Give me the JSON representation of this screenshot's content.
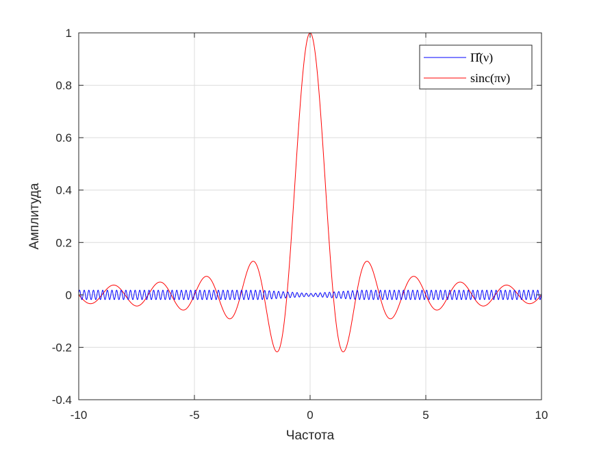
{
  "chart_data": {
    "type": "line",
    "title": "",
    "xlabel": "Частота",
    "ylabel": "Амплитуда",
    "xlim": [
      -10,
      10
    ],
    "ylim": [
      -0.4,
      1
    ],
    "xticks": [
      -10,
      -5,
      0,
      5,
      10
    ],
    "yticks": [
      -0.4,
      -0.2,
      0,
      0.2,
      0.4,
      0.6,
      0.8,
      1
    ],
    "xtick_labels": [
      "-10",
      "-5",
      "0",
      "5",
      "10"
    ],
    "ytick_labels": [
      "-0.4",
      "-0.2",
      "0",
      "0.2",
      "0.4",
      "0.6",
      "0.8",
      "1"
    ],
    "grid": true,
    "legend_position": "top-right",
    "series": [
      {
        "name": "Π̂(ν)",
        "color": "#0000ff",
        "function": "small oscillation around 0",
        "amplitude": 0.018,
        "frequency": 2.5,
        "x": [
          -10,
          -9.8,
          -9.6,
          -9.4,
          -9.2,
          -9,
          -8.8,
          -8.6,
          -8.4,
          -8.2,
          -8,
          -7.8,
          -7.6,
          -7.4,
          -7.2,
          -7,
          -6.8,
          -6.6,
          -6.4,
          -6.2,
          -6,
          -5.8,
          -5.6,
          -5.4,
          -5.2,
          -5,
          -4.8,
          -4.6,
          -4.4,
          -4.2,
          -4,
          -3.8,
          -3.6,
          -3.4,
          -3.2,
          -3,
          -2.8,
          -2.6,
          -2.4,
          -2.2,
          -2,
          -1.8,
          -1.6,
          -1.4,
          -1.2,
          -1,
          -0.8,
          -0.6,
          -0.4,
          -0.2,
          0,
          0.2,
          0.4,
          0.6,
          0.8,
          1,
          1.2,
          1.4,
          1.6,
          1.8,
          2,
          2.2,
          2.4,
          2.6,
          2.8,
          3,
          3.2,
          3.4,
          3.6,
          3.8,
          4,
          4.2,
          4.4,
          4.6,
          4.8,
          5,
          5.2,
          5.4,
          5.6,
          5.8,
          6,
          6.2,
          6.4,
          6.6,
          6.8,
          7,
          7.2,
          7.4,
          7.6,
          7.8,
          8,
          8.2,
          8.4,
          8.6,
          8.8,
          9,
          9.2,
          9.4,
          9.6,
          9.8,
          10
        ],
        "y_amplitude_envelope": "approx ±0.018 throughout, ±0.005 near 0"
      },
      {
        "name": "sinc(πν)",
        "color": "#ff0000",
        "function": "sin(pi*x)/(pi*x)",
        "peak": 1,
        "minima": [
          {
            "x": -1.43,
            "y": -0.217
          },
          {
            "x": 1.43,
            "y": -0.217
          },
          {
            "x": -3.47,
            "y": -0.091
          },
          {
            "x": 3.47,
            "y": -0.091
          },
          {
            "x": -5.48,
            "y": -0.058
          },
          {
            "x": 5.48,
            "y": -0.058
          },
          {
            "x": -7.49,
            "y": -0.042
          },
          {
            "x": 7.49,
            "y": -0.042
          },
          {
            "x": -9.49,
            "y": -0.034
          },
          {
            "x": 9.49,
            "y": -0.034
          }
        ],
        "maxima": [
          {
            "x": 0,
            "y": 1
          },
          {
            "x": -2.46,
            "y": 0.128
          },
          {
            "x": 2.46,
            "y": 0.128
          },
          {
            "x": -4.47,
            "y": 0.071
          },
          {
            "x": 4.47,
            "y": 0.071
          },
          {
            "x": -6.48,
            "y": 0.049
          },
          {
            "x": 6.48,
            "y": 0.049
          },
          {
            "x": -8.49,
            "y": 0.037
          },
          {
            "x": 8.49,
            "y": 0.037
          }
        ]
      }
    ]
  }
}
